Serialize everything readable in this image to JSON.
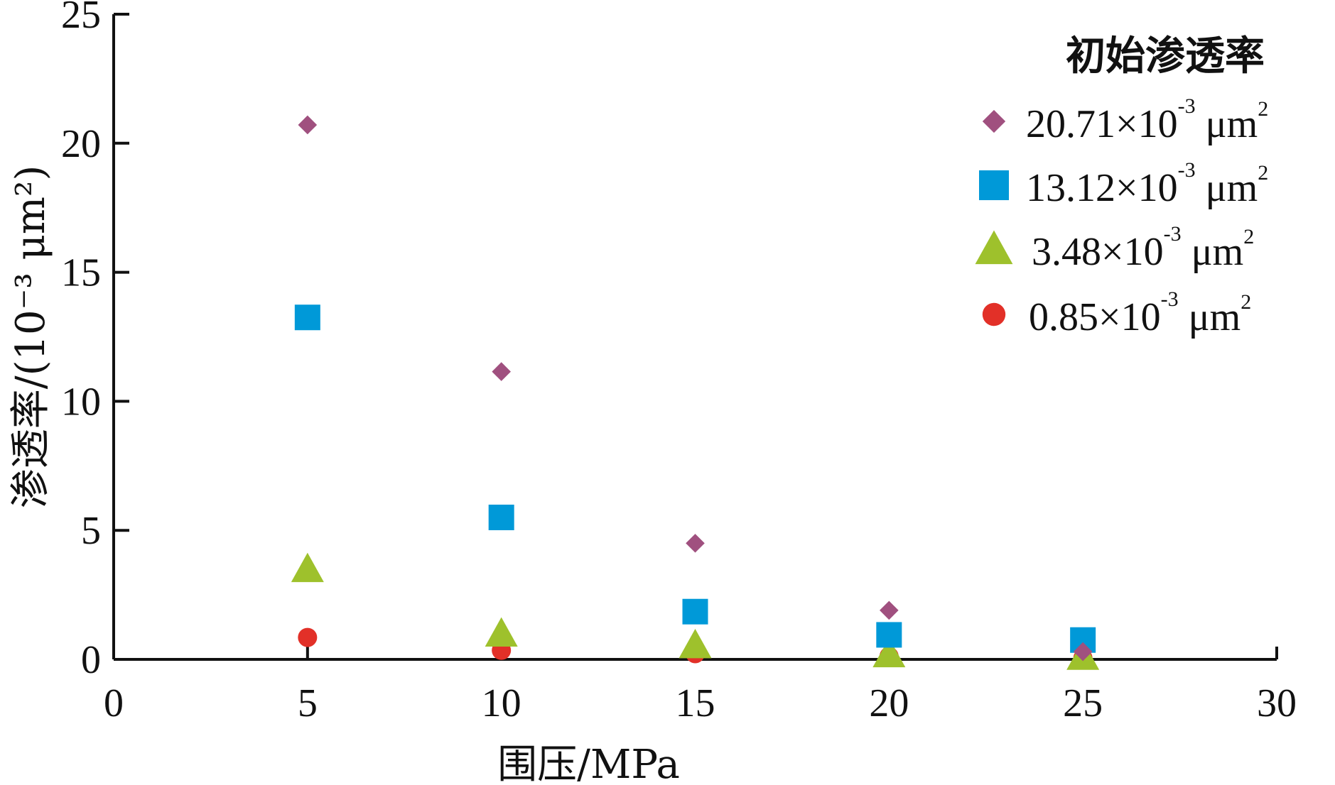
{
  "chart_data": {
    "type": "scatter",
    "x_label": "围压/MPa",
    "y_label": "渗透率/(10⁻³ μm²)",
    "xlim": [
      0,
      30
    ],
    "ylim": [
      0,
      25
    ],
    "xticks": [
      0,
      5,
      10,
      15,
      20,
      25,
      30
    ],
    "yticks": [
      0,
      5,
      10,
      15,
      20,
      25
    ],
    "legend": {
      "title": "初始渗透率",
      "position": "top-right",
      "exponent": "-3",
      "unit": "μm",
      "unit_exponent": "2"
    },
    "series": [
      {
        "name": "20.71×10⁻³ μm²",
        "legend_value": "20.71×10",
        "marker": "diamond",
        "color": "#a0507f",
        "x": [
          5,
          10,
          15,
          20,
          25
        ],
        "y": [
          20.71,
          11.15,
          4.5,
          1.9,
          0.3
        ]
      },
      {
        "name": "13.12×10⁻³ μm²",
        "legend_value": "13.12×10",
        "marker": "square",
        "color": "#0099d8",
        "x": [
          5,
          10,
          15,
          20,
          25
        ],
        "y": [
          13.25,
          5.5,
          1.85,
          0.95,
          0.75
        ]
      },
      {
        "name": "3.48×10⁻³ μm²",
        "legend_value": "3.48×10",
        "marker": "triangle",
        "color": "#9ec12c",
        "x": [
          5,
          10,
          15,
          20,
          25
        ],
        "y": [
          3.5,
          1.0,
          0.55,
          0.2,
          0.1
        ]
      },
      {
        "name": "0.85×10⁻³ μm²",
        "legend_value": "0.85×10",
        "marker": "circle",
        "color": "#e23028",
        "x": [
          5,
          10,
          15,
          20,
          25
        ],
        "y": [
          0.85,
          0.35,
          0.22,
          0.12,
          0.05
        ]
      }
    ],
    "grid": false
  }
}
